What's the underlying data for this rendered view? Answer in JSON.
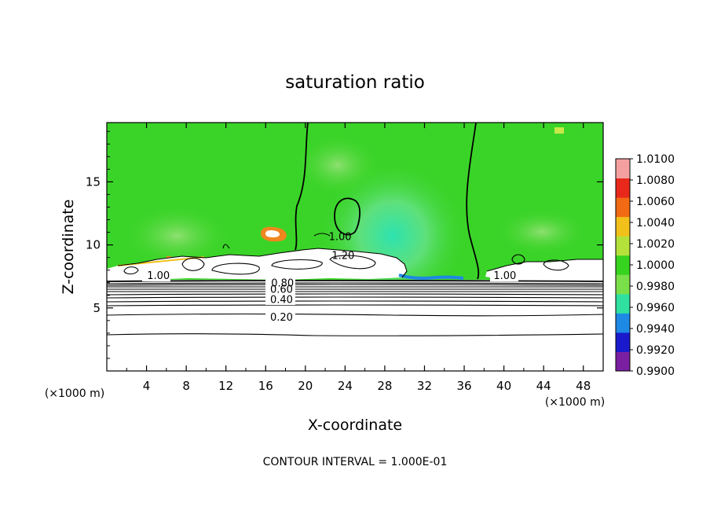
{
  "chart_data": {
    "type": "heatmap",
    "title": "saturation ratio",
    "xlabel": "X-coordinate",
    "ylabel": "Z-coordinate",
    "x_unit": "(×1000 m)",
    "y_unit": "(×1000 m)",
    "xlim": [
      0,
      50
    ],
    "ylim": [
      0,
      19.7
    ],
    "x_ticks": [
      4,
      8,
      12,
      16,
      20,
      24,
      28,
      32,
      36,
      40,
      44,
      48
    ],
    "y_ticks": [
      5,
      10,
      15
    ],
    "colorbar": {
      "levels": [
        "0.9900",
        "0.9920",
        "0.9940",
        "0.9960",
        "0.9980",
        "1.0000",
        "1.0020",
        "1.0040",
        "1.0060",
        "1.0080",
        "1.0100"
      ],
      "colors": [
        "#7b1fa2",
        "#1a1acc",
        "#1e88e5",
        "#2fe0a0",
        "#7ae04a",
        "#37d41f",
        "#b4e23a",
        "#f2c01a",
        "#f26a14",
        "#e8281a",
        "#f4a0a0"
      ]
    },
    "contour_labels": [
      {
        "text": "1.00",
        "x": 5.2,
        "z": 7.6
      },
      {
        "text": "1.00",
        "x": 23.5,
        "z": 10.7
      },
      {
        "text": "1.20",
        "x": 23.8,
        "z": 9.2
      },
      {
        "text": "0.80",
        "x": 17.7,
        "z": 7.0
      },
      {
        "text": "0.60",
        "x": 17.6,
        "z": 6.5
      },
      {
        "text": "0.40",
        "x": 17.6,
        "z": 5.7
      },
      {
        "text": "0.20",
        "x": 17.6,
        "z": 4.3
      },
      {
        "text": "1.00",
        "x": 40.1,
        "z": 7.6
      }
    ],
    "annotation": "CONTOUR INTERVAL = 1.000E-01"
  }
}
